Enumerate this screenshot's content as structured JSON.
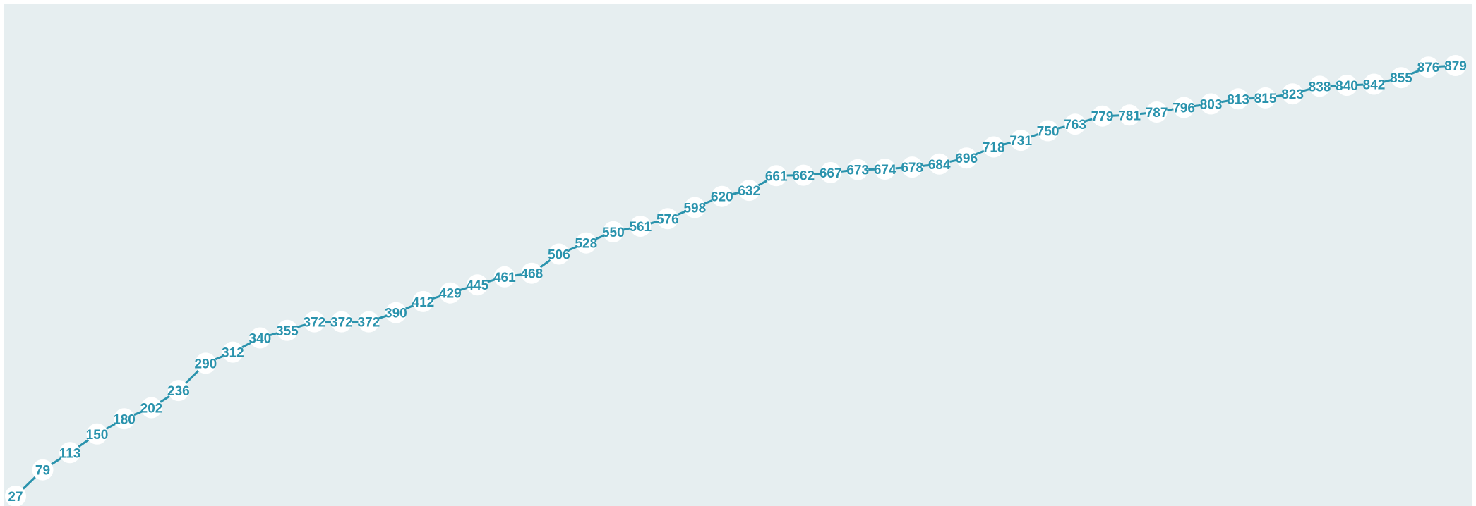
{
  "chart_data": {
    "type": "line",
    "series": [
      {
        "values": [
          27,
          79,
          113,
          150,
          180,
          202,
          236,
          290,
          312,
          340,
          355,
          372,
          372,
          372,
          390,
          412,
          429,
          445,
          461,
          468,
          506,
          528,
          550,
          561,
          576,
          598,
          620,
          632,
          661,
          662,
          667,
          673,
          674,
          678,
          684,
          696,
          718,
          731,
          750,
          763,
          779,
          781,
          787,
          796,
          803,
          813,
          815,
          823,
          838,
          840,
          842,
          855,
          876,
          879
        ]
      }
    ],
    "data_labels": true,
    "axes_visible": false,
    "grid": false,
    "colors": {
      "plot_background": "#e6eef0",
      "line": "#2a93ad",
      "marker_fill": "#ffffff",
      "label": "#2a93ad"
    }
  }
}
